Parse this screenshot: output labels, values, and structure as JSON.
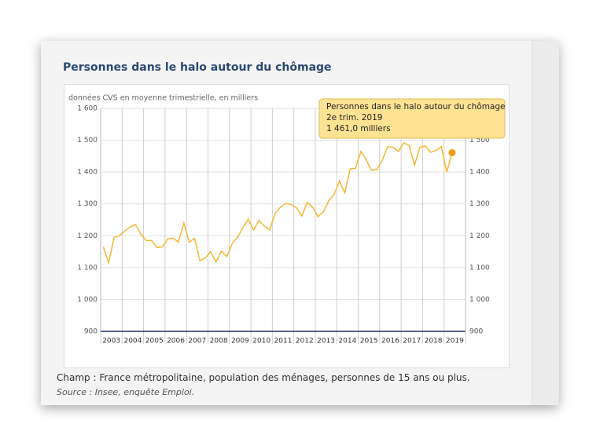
{
  "chart_data": {
    "type": "line",
    "title": "Personnes dans le halo autour du chômage",
    "subtitle": "données CVS en moyenne trimestrielle, en milliers",
    "categories": [
      "2003",
      null,
      null,
      null,
      "2004",
      null,
      null,
      null,
      "2005",
      null,
      null,
      null,
      "2006",
      null,
      null,
      null,
      "2007",
      null,
      null,
      null,
      "2008",
      null,
      null,
      null,
      "2009",
      null,
      null,
      null,
      "2010",
      null,
      null,
      null,
      "2011",
      null,
      null,
      null,
      "2012",
      null,
      null,
      null,
      "2013",
      null,
      null,
      null,
      "2014",
      null,
      null,
      null,
      "2015",
      null,
      null,
      null,
      "2016",
      null,
      null,
      null,
      "2017",
      null,
      null,
      null,
      "2018",
      null,
      null,
      null,
      "2019",
      null
    ],
    "series": [
      {
        "name": "Personnes dans le halo autour du chômage",
        "color": "#f7b733",
        "marker_color": "#f39c12",
        "values": [
          1165,
          1115,
          1195,
          1200,
          1215,
          1228,
          1235,
          1205,
          1185,
          1185,
          1163,
          1165,
          1190,
          1193,
          1180,
          1240,
          1180,
          1192,
          1122,
          1130,
          1150,
          1118,
          1152,
          1135,
          1175,
          1195,
          1225,
          1252,
          1218,
          1248,
          1230,
          1218,
          1270,
          1290,
          1302,
          1298,
          1288,
          1262,
          1305,
          1290,
          1260,
          1275,
          1310,
          1330,
          1372,
          1335,
          1410,
          1412,
          1465,
          1438,
          1405,
          1408,
          1438,
          1480,
          1478,
          1465,
          1492,
          1483,
          1422,
          1478,
          1482,
          1462,
          1468,
          1480,
          1400,
          1461
        ]
      }
    ],
    "ylim": [
      900,
      1600
    ],
    "yticks": [
      900,
      {
        "value": 1000,
        "label": "1 000"
      },
      {
        "value": 1100,
        "label": "1 100"
      },
      {
        "value": 1200,
        "label": "1 200"
      },
      {
        "value": 1300,
        "label": "1 300"
      },
      {
        "value": 1400,
        "label": "1 400"
      },
      {
        "value": 1500,
        "label": "1 500"
      },
      {
        "value": 1600,
        "label": "1 600"
      }
    ],
    "grid": true,
    "tooltip": {
      "category": "2e trim. 2019",
      "value_label": "1 461,0 milliers"
    }
  },
  "footer": {
    "champ": "Champ : France métropolitaine, population des ménages, personnes de 15 ans ou plus.",
    "source": "Source : Insee, enquête Emploi."
  }
}
